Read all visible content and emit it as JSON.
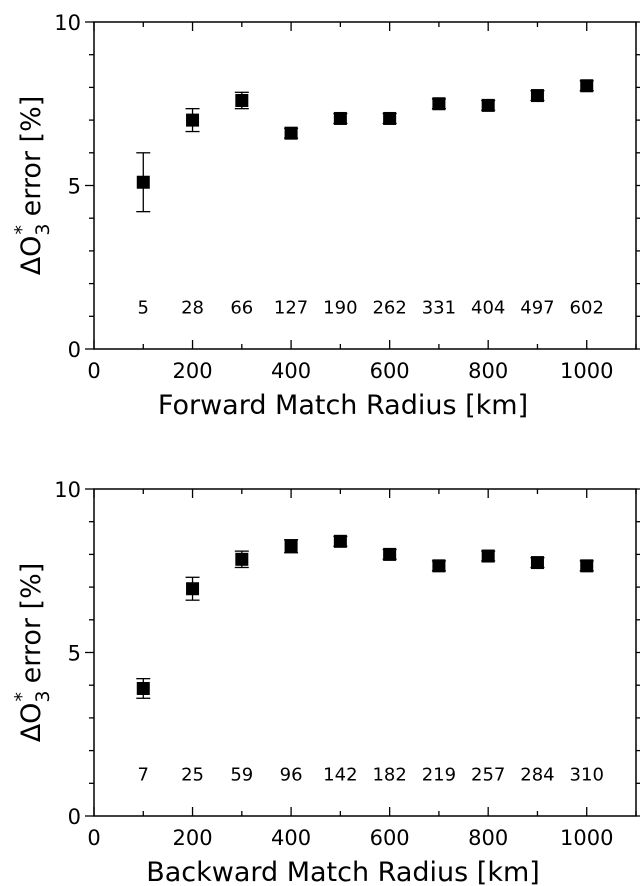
{
  "chart_data": [
    {
      "type": "scatter",
      "xlabel": "Forward Match Radius [km]",
      "ylabel_parts": [
        "ΔO",
        "3",
        "*",
        " error [%]"
      ],
      "xlim": [
        0,
        1100
      ],
      "ylim": [
        0,
        10
      ],
      "xticks": [
        0,
        200,
        400,
        600,
        800,
        1000
      ],
      "yticks": [
        0,
        5,
        10
      ],
      "x": [
        100,
        200,
        300,
        400,
        500,
        600,
        700,
        800,
        900,
        1000
      ],
      "y": [
        5.1,
        7.0,
        7.6,
        6.6,
        7.05,
        7.05,
        7.5,
        7.45,
        7.75,
        8.05
      ],
      "error": [
        0.9,
        0.35,
        0.25,
        0.15,
        0.15,
        0.15,
        0.15,
        0.15,
        0.15,
        0.15
      ],
      "counts": [
        "5",
        "28",
        "66",
        "127",
        "190",
        "262",
        "331",
        "404",
        "497",
        "602"
      ],
      "count_level": 1.3
    },
    {
      "type": "scatter",
      "xlabel": "Backward Match Radius [km]",
      "ylabel_parts": [
        "ΔO",
        "3",
        "*",
        " error [%]"
      ],
      "xlim": [
        0,
        1100
      ],
      "ylim": [
        0,
        10
      ],
      "xticks": [
        0,
        200,
        400,
        600,
        800,
        1000
      ],
      "yticks": [
        0,
        5,
        10
      ],
      "x": [
        100,
        200,
        300,
        400,
        500,
        600,
        700,
        800,
        900,
        1000
      ],
      "y": [
        3.9,
        6.95,
        7.85,
        8.25,
        8.4,
        8.0,
        7.65,
        7.95,
        7.75,
        7.65
      ],
      "error": [
        0.3,
        0.35,
        0.25,
        0.2,
        0.15,
        0.15,
        0.15,
        0.15,
        0.15,
        0.15
      ],
      "counts": [
        "7",
        "25",
        "59",
        "96",
        "142",
        "182",
        "219",
        "257",
        "284",
        "310"
      ],
      "count_level": 1.3
    }
  ]
}
